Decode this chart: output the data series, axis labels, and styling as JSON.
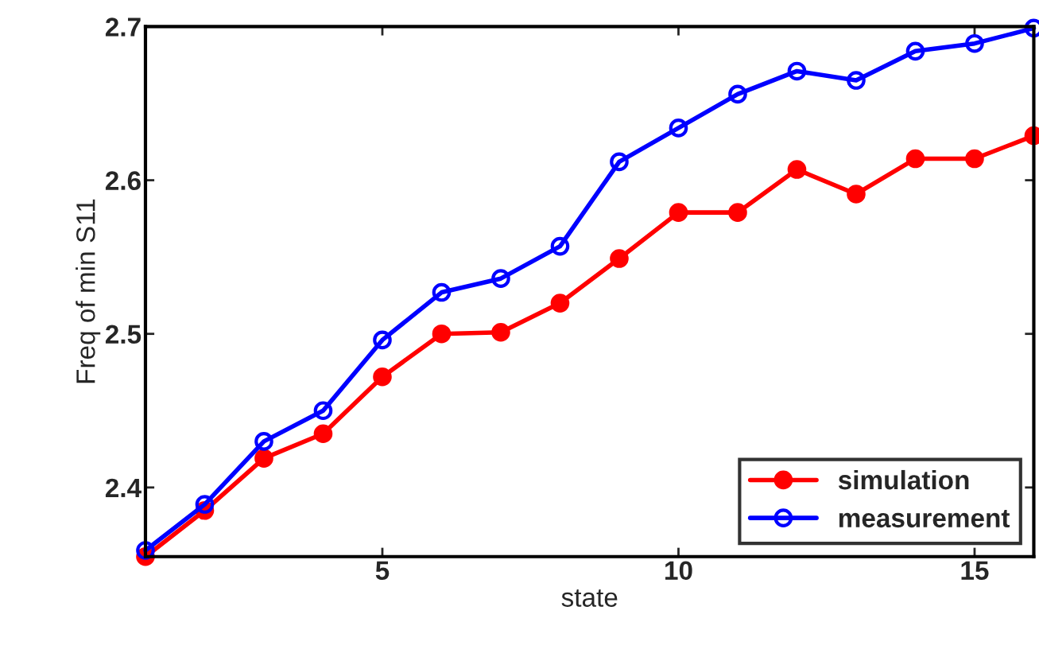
{
  "chart_data": {
    "type": "line",
    "xlabel": "state",
    "ylabel": "Freq of min S11",
    "x": [
      1,
      2,
      3,
      4,
      5,
      6,
      7,
      8,
      9,
      10,
      11,
      12,
      13,
      14,
      15,
      16
    ],
    "series": [
      {
        "name": "simulation",
        "color": "#ff0000",
        "marker": "dot",
        "values": [
          2.355,
          2.385,
          2.419,
          2.435,
          2.472,
          2.5,
          2.501,
          2.52,
          2.549,
          2.579,
          2.579,
          2.607,
          2.591,
          2.614,
          2.614,
          2.629
        ]
      },
      {
        "name": "measurement",
        "color": "#0000ff",
        "marker": "circle",
        "values": [
          2.359,
          2.389,
          2.43,
          2.45,
          2.496,
          2.527,
          2.536,
          2.557,
          2.612,
          2.634,
          2.656,
          2.671,
          2.665,
          2.684,
          2.689,
          2.699
        ]
      }
    ],
    "xlim": [
      1,
      16
    ],
    "xticks": [
      5,
      10,
      15
    ],
    "ylim": [
      2.355,
      2.7
    ],
    "yticks": [
      2.4,
      2.5,
      2.6,
      2.7
    ],
    "grid": false,
    "legend": "bottom right",
    "line_style": "solid"
  }
}
